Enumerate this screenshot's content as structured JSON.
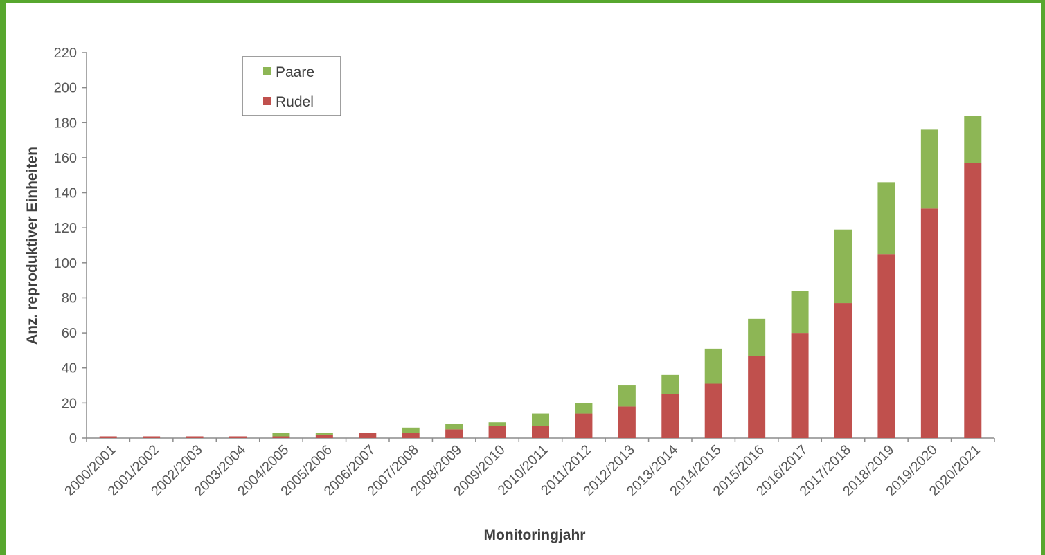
{
  "chart_data": {
    "type": "bar",
    "stacked": true,
    "categories": [
      "2000/2001",
      "2001/2002",
      "2002/2003",
      "2003/2004",
      "2004/2005",
      "2005/2006",
      "2006/2007",
      "2007/2008",
      "2008/2009",
      "2009/2010",
      "2010/2011",
      "2011/2012",
      "2012/2013",
      "2013/2014",
      "2014/2015",
      "2015/2016",
      "2016/2017",
      "2017/2018",
      "2018/2019",
      "2019/2020",
      "2020/2021"
    ],
    "series": [
      {
        "name": "Rudel",
        "color": "#c0504d",
        "values": [
          1,
          1,
          1,
          1,
          1,
          2,
          3,
          3,
          5,
          7,
          7,
          14,
          18,
          25,
          31,
          47,
          60,
          77,
          105,
          131,
          157
        ]
      },
      {
        "name": "Paare",
        "color": "#8db655",
        "values": [
          0,
          0,
          0,
          0,
          2,
          1,
          0,
          3,
          3,
          2,
          7,
          6,
          12,
          11,
          20,
          21,
          24,
          42,
          41,
          45,
          27
        ]
      }
    ],
    "legend_order": [
      "Paare",
      "Rudel"
    ],
    "legend_position": "top-left",
    "xlabel": "Monitoringjahr",
    "ylabel": "Anz. reproduktiver Einheiten",
    "ylim": [
      0,
      220
    ],
    "yticks": [
      "0",
      "20",
      "40",
      "60",
      "80",
      "100",
      "120",
      "140",
      "160",
      "180",
      "200",
      "220"
    ],
    "grid": false
  }
}
